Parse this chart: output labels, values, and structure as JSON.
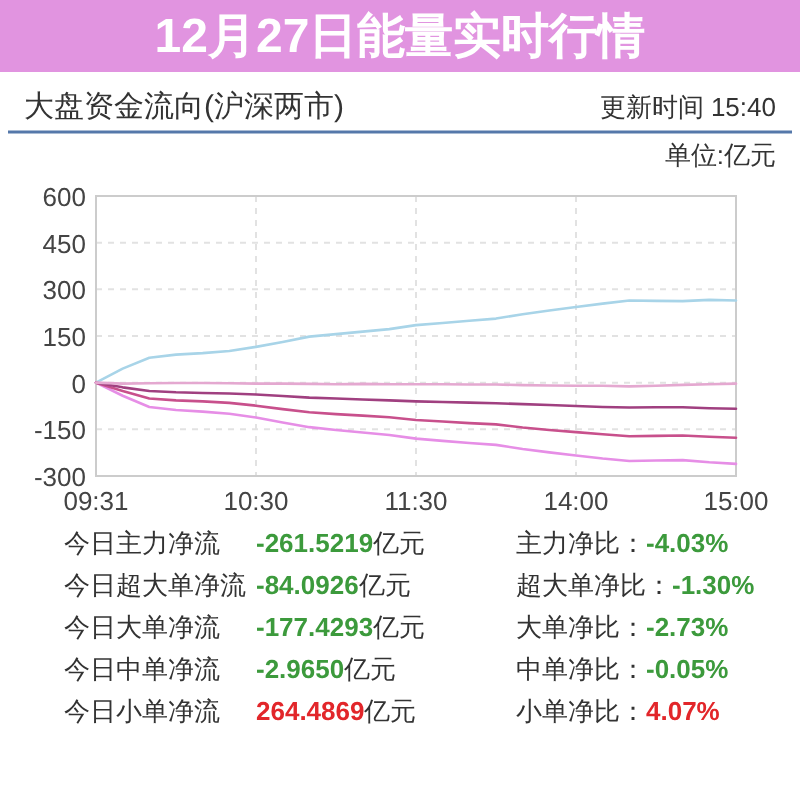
{
  "chart_data": [
    {
      "type": "line",
      "title": "12月27日能量实时行情",
      "subtitle": "大盘资金流向(沪深两市)",
      "annotations": [
        "更新时间 15:40",
        "单位:亿元"
      ],
      "categories": [
        "09:31",
        null,
        null,
        null,
        null,
        null,
        "10:30",
        null,
        null,
        null,
        null,
        null,
        "11:30",
        null,
        null,
        null,
        null,
        null,
        "14:00",
        null,
        null,
        null,
        null,
        null,
        "15:00"
      ],
      "ylim": [
        -300,
        600
      ],
      "yticks": [
        -300,
        -150,
        0,
        150,
        300,
        450,
        600
      ],
      "grid": true,
      "series": [
        {
          "color": "#a8d4e8",
          "values": [
            0,
            45,
            80,
            90,
            95,
            102,
            115,
            131,
            148,
            156,
            164,
            172,
            185,
            192,
            199,
            206,
            220,
            232,
            243,
            254,
            264,
            263,
            262,
            266,
            264
          ]
        },
        {
          "color": "#e68ee6",
          "values": [
            0,
            -42,
            -78,
            -88,
            -93,
            -100,
            -112,
            -128,
            -143,
            -152,
            -160,
            -168,
            -180,
            -187,
            -194,
            -200,
            -213,
            -224,
            -234,
            -244,
            -252,
            -250,
            -249,
            -256,
            -261
          ]
        },
        {
          "color": "#c8508c",
          "values": [
            0,
            -27,
            -51,
            -57,
            -60,
            -65,
            -74,
            -85,
            -95,
            -101,
            -106,
            -111,
            -120,
            -125,
            -130,
            -134,
            -144,
            -152,
            -159,
            -166,
            -172,
            -171,
            -170,
            -174,
            -177
          ]
        },
        {
          "color": "#a04080",
          "values": [
            0,
            -15,
            -27,
            -31,
            -33,
            -35,
            -38,
            -43,
            -48,
            -51,
            -54,
            -57,
            -60,
            -62,
            -64,
            -66,
            -69,
            -72,
            -75,
            -78,
            -80,
            -79,
            -79,
            -82,
            -84
          ]
        },
        {
          "color": "#e4a8d0",
          "values": [
            0,
            -3,
            -2,
            -1,
            -1,
            -2,
            -3,
            -3,
            -4,
            -5,
            -4,
            -5,
            -5,
            -5,
            -6,
            -6,
            -8,
            -9,
            -10,
            -10,
            -12,
            -10,
            -7,
            -5,
            -3
          ]
        }
      ]
    },
    {
      "type": "other",
      "annotations": [
        "今日主力净流",
        "-261.5219",
        "亿元",
        "主力净比：",
        "-4.03%",
        "今日超大单净流",
        "-84.0926",
        "亿元",
        "超大单净比：",
        "-1.30%",
        "今日大单净流",
        "-177.4293",
        "亿元",
        "大单净比：",
        "-2.73%",
        "今日中单净流",
        "-2.9650",
        "亿元",
        "中单净比：",
        "-0.05%",
        "今日小单净流",
        "264.4869",
        "亿元",
        "小单净比：",
        "4.07%"
      ]
    }
  ]
}
